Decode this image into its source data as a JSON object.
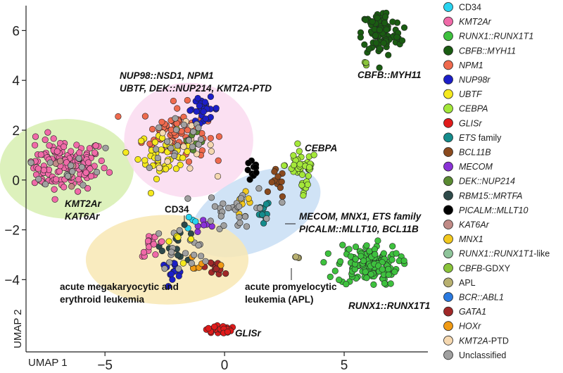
{
  "chart_data": {
    "type": "scatter",
    "xlabel": "UMAP 1",
    "ylabel": "UMAP 2",
    "xlim": [
      -8.3,
      8.5
    ],
    "ylim": [
      -6.9,
      7.0
    ],
    "x_ticks": [
      -5,
      0,
      5
    ],
    "y_ticks": [
      6,
      4,
      2,
      0,
      -2,
      -4
    ],
    "grid": false,
    "legend_position": "right",
    "legend": [
      {
        "label": "CD34",
        "color": "#29d4f0",
        "italic": false
      },
      {
        "label": "KMT2Ar",
        "color": "#f06aa8",
        "italic": true
      },
      {
        "label": "RUNX1::RUNX1T1",
        "color": "#3ec13e",
        "italic": true
      },
      {
        "label": "CBFB::MYH11",
        "color": "#1a5c12",
        "italic": true
      },
      {
        "label": "NPM1",
        "color": "#ef6a4e",
        "italic": true
      },
      {
        "label": "NUP98r",
        "color": "#1c1ec8",
        "italic": true
      },
      {
        "label": "UBTF",
        "color": "#f5e91e",
        "italic": true
      },
      {
        "label": "CEBPA",
        "color": "#a4e83a",
        "italic": true
      },
      {
        "label": "GLISr",
        "color": "#e01a1a",
        "italic": true
      },
      {
        "label": "ETS family",
        "color": "#148c8c",
        "italic_part": "ETS",
        "rest": " family"
      },
      {
        "label": "BCL11B",
        "color": "#8a4a1e",
        "italic": true
      },
      {
        "label": "MECOM",
        "color": "#8a32d6",
        "italic": true
      },
      {
        "label": "DEK::NUP214",
        "color": "#5a8a32",
        "italic": true
      },
      {
        "label": "RBM15::MRTFA",
        "color": "#2e4a4a",
        "italic": true
      },
      {
        "label": "PICALM::MLLT10",
        "color": "#000000",
        "italic": true
      },
      {
        "label": "KAT6Ar",
        "color": "#c08a86",
        "italic": true
      },
      {
        "label": "MNX1",
        "color": "#f2c81e",
        "italic": true
      },
      {
        "label": "RUNX1::RUNX1T1-like",
        "color": "#8ec49a",
        "italic_part": "RUNX1::RUNX1T1",
        "rest": "-like"
      },
      {
        "label": "CBFB-GDXY",
        "color": "#8ac43a",
        "italic_part": "CBFB",
        "rest": "-GDXY"
      },
      {
        "label": "APL",
        "color": "#b8b070",
        "italic": false
      },
      {
        "label": "BCR::ABL1",
        "color": "#2a7ae0",
        "italic": true
      },
      {
        "label": "GATA1",
        "color": "#a02828",
        "italic": true
      },
      {
        "label": "HOXr",
        "color": "#f09a14",
        "italic": true
      },
      {
        "label": "KMT2A-PTD",
        "color": "#f5d8b0",
        "italic_part": "KMT2A",
        "rest": "-PTD"
      },
      {
        "label": "Unclassified",
        "color": "#a0a0a0",
        "italic": false
      }
    ],
    "regions": [
      {
        "name": "KMT2Ar / KAT6Ar",
        "color": "#d7efb0",
        "cx": -6.6,
        "cy": 0.45,
        "rx": 2.8,
        "ry": 2.0,
        "rot": 0
      },
      {
        "name": "NUP98 / NPM1 / UBTF",
        "color": "#fadbf0",
        "cx": -1.5,
        "cy": 1.6,
        "rx": 2.7,
        "ry": 2.3,
        "rot": 0
      },
      {
        "name": "MECOM / MNX1 / ETS",
        "color": "#c8def5",
        "cx": 1.3,
        "cy": -1.3,
        "rx": 2.9,
        "ry": 1.5,
        "rot": -25
      },
      {
        "name": "acute megakaryocytic",
        "color": "#f8e8b4",
        "cx": -2.4,
        "cy": -3.2,
        "rx": 3.4,
        "ry": 1.8,
        "rot": 0
      }
    ],
    "clusters": [
      {
        "group": "KMT2Ar",
        "color": "#f06aa8",
        "cx": -6.8,
        "cy": 0.6,
        "sx": 1.25,
        "sy": 0.7,
        "n": 150
      },
      {
        "group": "KAT6Ar",
        "color": "#c08a86",
        "cx": -6.3,
        "cy": 0.3,
        "sx": 1.0,
        "sy": 0.6,
        "n": 6
      },
      {
        "group": "Unclassified",
        "color": "#a0a0a0",
        "cx": -6.4,
        "cy": 0.5,
        "sx": 1.3,
        "sy": 0.7,
        "n": 14
      },
      {
        "group": "NPM1",
        "color": "#ef6a4e",
        "cx": -2.1,
        "cy": 1.9,
        "sx": 0.9,
        "sy": 0.75,
        "n": 70
      },
      {
        "group": "UBTF",
        "color": "#f5e91e",
        "cx": -2.5,
        "cy": 1.0,
        "sx": 0.75,
        "sy": 0.6,
        "n": 40
      },
      {
        "group": "NUP98r",
        "color": "#1c1ec8",
        "cx": -0.9,
        "cy": 2.85,
        "sx": 0.45,
        "sy": 0.3,
        "n": 28
      },
      {
        "group": "KMT2A-PTD",
        "color": "#f5d8b0",
        "cx": -1.8,
        "cy": 1.3,
        "sx": 0.9,
        "sy": 0.6,
        "n": 14
      },
      {
        "group": "DEK::NUP214",
        "color": "#5a8a32",
        "cx": -1.3,
        "cy": 1.2,
        "sx": 0.7,
        "sy": 0.5,
        "n": 6
      },
      {
        "group": "Unclassified",
        "color": "#a0a0a0",
        "cx": -1.8,
        "cy": 1.6,
        "sx": 0.9,
        "sy": 0.8,
        "n": 20
      },
      {
        "group": "CEBPA",
        "color": "#a4e83a",
        "cx": 3.2,
        "cy": 0.6,
        "sx": 0.45,
        "sy": 0.35,
        "n": 40
      },
      {
        "group": "CEBPA",
        "color": "#a4e83a",
        "cx": 3.3,
        "cy": -0.4,
        "sx": 0.15,
        "sy": 0.35,
        "n": 8
      },
      {
        "group": "PICALM::MLLT10",
        "color": "#000000",
        "cx": 1.2,
        "cy": 0.35,
        "sx": 0.2,
        "sy": 0.3,
        "n": 12
      },
      {
        "group": "BCL11B",
        "color": "#8a4a1e",
        "cx": 2.2,
        "cy": -0.2,
        "sx": 0.2,
        "sy": 0.4,
        "n": 12
      },
      {
        "group": "ETS family",
        "color": "#148c8c",
        "cx": 1.6,
        "cy": -1.3,
        "sx": 0.2,
        "sy": 0.35,
        "n": 12
      },
      {
        "group": "MNX1",
        "color": "#f2c81e",
        "cx": 0.8,
        "cy": -1.1,
        "sx": 0.35,
        "sy": 0.35,
        "n": 8
      },
      {
        "group": "MECOM",
        "color": "#8a32d6",
        "cx": -0.7,
        "cy": -1.7,
        "sx": 0.25,
        "sy": 0.2,
        "n": 6
      },
      {
        "group": "Unclassified",
        "color": "#a0a0a0",
        "cx": 0.6,
        "cy": -1.2,
        "sx": 1.0,
        "sy": 0.6,
        "n": 30
      },
      {
        "group": "CD34",
        "color": "#29d4f0",
        "cx": -1.5,
        "cy": -1.6,
        "sx": 0.3,
        "sy": 0.3,
        "n": 4
      },
      {
        "group": "RBM15::MRTFA",
        "color": "#2e4a4a",
        "cx": -1.9,
        "cy": -2.6,
        "sx": 0.5,
        "sy": 0.45,
        "n": 14
      },
      {
        "group": "KMT2Ar",
        "color": "#f06aa8",
        "cx": -3.0,
        "cy": -2.6,
        "sx": 0.35,
        "sy": 0.3,
        "n": 16
      },
      {
        "group": "NUP98r",
        "color": "#1c1ec8",
        "cx": -2.2,
        "cy": -3.6,
        "sx": 0.35,
        "sy": 0.22,
        "n": 14
      },
      {
        "group": "GATA1",
        "color": "#a02828",
        "cx": -0.4,
        "cy": -3.5,
        "sx": 0.25,
        "sy": 0.2,
        "n": 12
      },
      {
        "group": "HOXr",
        "color": "#f09a14",
        "cx": -1.1,
        "cy": -3.6,
        "sx": 0.4,
        "sy": 0.3,
        "n": 6
      },
      {
        "group": "Unclassified",
        "color": "#a0a0a0",
        "cx": -1.8,
        "cy": -2.8,
        "sx": 0.8,
        "sy": 0.6,
        "n": 18
      },
      {
        "group": "UBTF",
        "color": "#f5e91e",
        "cx": -2.0,
        "cy": -2.5,
        "sx": 0.6,
        "sy": 0.5,
        "n": 5
      },
      {
        "group": "CBFB::MYH11",
        "color": "#1a5c12",
        "cx": 6.55,
        "cy": 5.9,
        "sx": 0.55,
        "sy": 0.65,
        "n": 95
      },
      {
        "group": "CBFB-GDXY",
        "color": "#8ac43a",
        "cx": 5.9,
        "cy": 4.7,
        "sx": 0.1,
        "sy": 0.1,
        "n": 4
      },
      {
        "group": "RUNX1::RUNX1T1",
        "color": "#3ec13e",
        "cx": 6.0,
        "cy": -3.4,
        "sx": 0.85,
        "sy": 0.55,
        "n": 130
      },
      {
        "group": "GLISr",
        "color": "#e01a1a",
        "cx": -0.25,
        "cy": -6.0,
        "sx": 0.35,
        "sy": 0.12,
        "n": 28
      },
      {
        "group": "APL",
        "color": "#b8b070",
        "cx": 3.05,
        "cy": -3.1,
        "sx": 0.06,
        "sy": 0.04,
        "n": 4
      }
    ]
  },
  "labels": {
    "nup98_line1": "NUP98::NSD1, NPM1",
    "nup98_line2": "UBTF, DEK::NUP214, KMT2A-PTD",
    "cbfb": "CBFB::MYH11",
    "cebpa": "CEBPA",
    "kmt2ar": "KMT2Ar",
    "kat6ar": "KAT6Ar",
    "cd34": "CD34",
    "mecom_line1": "MECOM, MNX1, ETS family",
    "mecom_line2": "PICALM::MLLT10, BCL11B",
    "amkl_line1": "acute megakaryocytic and",
    "amkl_line2": "erythroid leukemia",
    "apl_line1": "acute promyelocytic",
    "apl_line2": "leukemia (APL)",
    "runx1": "RUNX1::RUNX1T1",
    "glis": "GLISr"
  }
}
